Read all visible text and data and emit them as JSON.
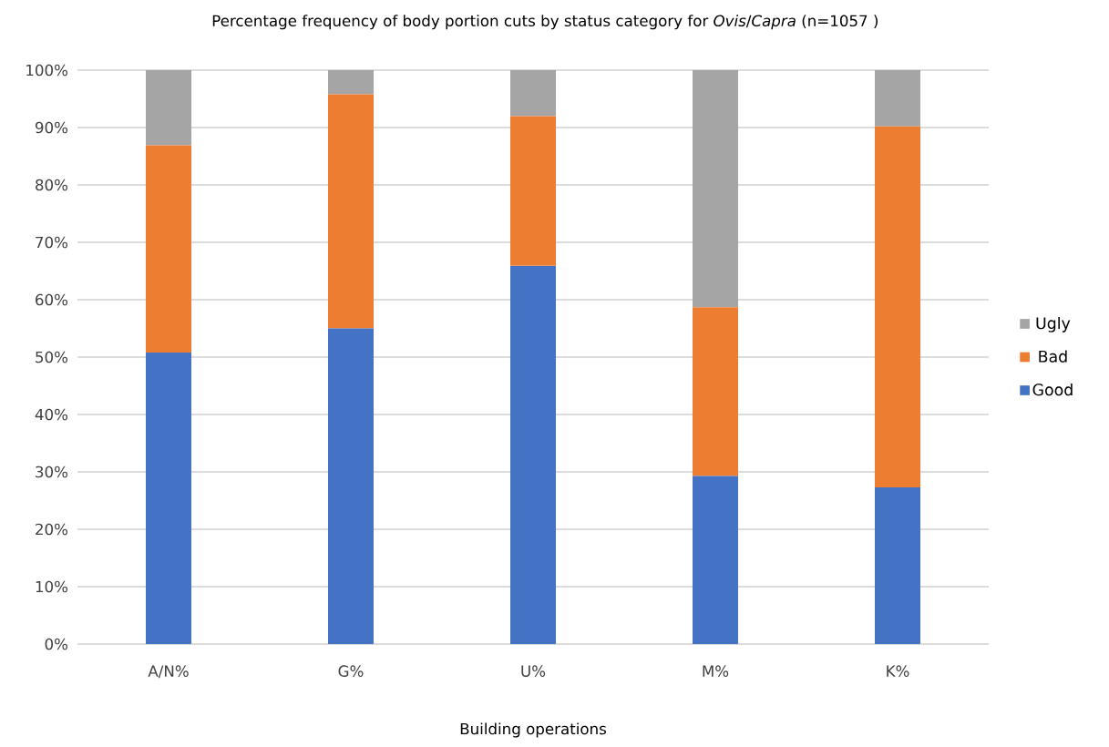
{
  "chart_data": {
    "type": "bar",
    "stacked": true,
    "title": "Percentage frequency of body portion cuts by status category for *Ovis*/*Capra* (n=1057 )",
    "xlabel": "Building operations",
    "categories": [
      "A/N%",
      "G%",
      "U%",
      "M%",
      "K%"
    ],
    "series": [
      {
        "name": "Good",
        "color": "#4472c4",
        "values": [
          50.8,
          55.0,
          65.9,
          29.3,
          27.3
        ]
      },
      {
        "name": "Bad",
        "color": "#ed7d31",
        "values": [
          36.1,
          40.8,
          26.1,
          29.4,
          62.9
        ]
      },
      {
        "name": "Ugly",
        "color": "#a5a5a5",
        "values": [
          13.1,
          4.2,
          8.0,
          41.3,
          9.8
        ]
      }
    ],
    "ylim": [
      0,
      100
    ],
    "yticks": [
      {
        "value": 0,
        "label": "0%"
      },
      {
        "value": 10,
        "label": "10%"
      },
      {
        "value": 20,
        "label": "20%"
      },
      {
        "value": 30,
        "label": "30%"
      },
      {
        "value": 40,
        "label": "40%"
      },
      {
        "value": 50,
        "label": "50%"
      },
      {
        "value": 60,
        "label": "60%"
      },
      {
        "value": 70,
        "label": "70%"
      },
      {
        "value": 80,
        "label": "80%"
      },
      {
        "value": 90,
        "label": "90%"
      },
      {
        "value": 100,
        "label": "100%"
      }
    ],
    "grid": "y",
    "legend": "right"
  }
}
